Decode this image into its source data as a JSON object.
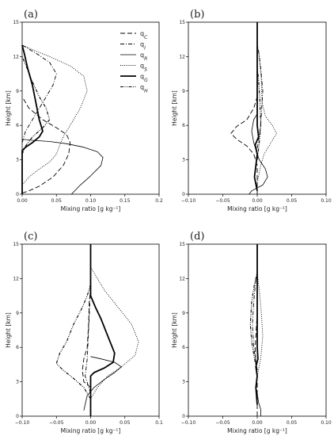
{
  "chart_data": [
    {
      "type": "line",
      "panel_label": "(a)",
      "xlabel": "Mixing ratio [g kg⁻¹]",
      "ylabel": "Height [km]",
      "xlim": [
        0,
        0.2
      ],
      "ylim": [
        0,
        15
      ],
      "xticks": [
        0,
        0.05,
        0.1,
        0.15,
        0.2
      ],
      "xtick_labels": [
        "0.00",
        "0.05",
        "0.10",
        "0.15",
        "0.2"
      ],
      "yticks": [
        0,
        3,
        6,
        9,
        12,
        15
      ],
      "legend": {
        "position": "top-right",
        "entries": [
          "q_C",
          "q_I",
          "q_R",
          "q_S",
          "q_G",
          "q_H"
        ]
      },
      "series": [
        {
          "name": "q_C",
          "points": [
            [
              0,
              0.1
            ],
            [
              0.01,
              0.3
            ],
            [
              0.025,
              0.7
            ],
            [
              0.045,
              1.5
            ],
            [
              0.06,
              2.5
            ],
            [
              0.068,
              3.5
            ],
            [
              0.07,
              4.5
            ],
            [
              0.065,
              5.2
            ],
            [
              0.05,
              5.8
            ],
            [
              0.03,
              6.5
            ],
            [
              0.01,
              7.5
            ],
            [
              0,
              8.5
            ]
          ]
        },
        {
          "name": "q_I",
          "points": [
            [
              0,
              4.5
            ],
            [
              0.005,
              5.5
            ],
            [
              0.015,
              6.5
            ],
            [
              0.03,
              8
            ],
            [
              0.045,
              9.5
            ],
            [
              0.05,
              10.5
            ],
            [
              0.04,
              11.5
            ],
            [
              0.02,
              12.3
            ],
            [
              0,
              13
            ]
          ]
        },
        {
          "name": "q_R",
          "points": [
            [
              0.072,
              0
            ],
            [
              0.085,
              0.8
            ],
            [
              0.1,
              1.6
            ],
            [
              0.115,
              2.5
            ],
            [
              0.118,
              3.2
            ],
            [
              0.11,
              3.7
            ],
            [
              0.09,
              4.1
            ],
            [
              0.065,
              4.4
            ],
            [
              0.04,
              4.6
            ],
            [
              0.015,
              4.7
            ],
            [
              0,
              4.8
            ]
          ]
        },
        {
          "name": "q_S",
          "points": [
            [
              0,
              0.8
            ],
            [
              0.01,
              1.5
            ],
            [
              0.025,
              2.2
            ],
            [
              0.04,
              2.8
            ],
            [
              0.05,
              3.5
            ],
            [
              0.055,
              4.3
            ],
            [
              0.06,
              5
            ],
            [
              0.07,
              6
            ],
            [
              0.085,
              7.5
            ],
            [
              0.095,
              9
            ],
            [
              0.09,
              10.3
            ],
            [
              0.07,
              11.2
            ],
            [
              0.04,
              12
            ],
            [
              0.015,
              12.6
            ],
            [
              0,
              13
            ]
          ]
        },
        {
          "name": "q_G",
          "points": [
            [
              0,
              0
            ],
            [
              0,
              3.8
            ],
            [
              0.005,
              4.1
            ],
            [
              0.015,
              4.5
            ],
            [
              0.025,
              5
            ],
            [
              0.03,
              5.5
            ],
            [
              0.025,
              6.5
            ],
            [
              0.02,
              8
            ],
            [
              0.015,
              9.5
            ],
            [
              0.008,
              11
            ],
            [
              0.003,
              12.3
            ],
            [
              0,
              13
            ]
          ]
        },
        {
          "name": "q_H",
          "points": [
            [
              0,
              3.5
            ],
            [
              0.005,
              4.2
            ],
            [
              0.015,
              5
            ],
            [
              0.03,
              5.8
            ],
            [
              0.04,
              6.5
            ],
            [
              0.035,
              7.5
            ],
            [
              0.025,
              8.5
            ],
            [
              0.015,
              9.8
            ],
            [
              0.007,
              11
            ],
            [
              0,
              12
            ]
          ]
        }
      ]
    },
    {
      "type": "line",
      "panel_label": "(b)",
      "xlabel": "Mixing ratio [g kg⁻¹]",
      "ylabel": "Height [km]",
      "xlim": [
        -0.1,
        0.1
      ],
      "ylim": [
        0,
        15
      ],
      "xticks": [
        -0.1,
        -0.05,
        0,
        0.05,
        0.1
      ],
      "xtick_labels": [
        "−0.10",
        "−0.05",
        "0.00",
        "0.05",
        "0.10"
      ],
      "yticks": [
        0,
        3,
        6,
        9,
        12,
        15
      ],
      "series": [
        {
          "name": "q_C",
          "points": [
            [
              0,
              0
            ],
            [
              0,
              2.5
            ],
            [
              -0.005,
              3.5
            ],
            [
              -0.015,
              4.2
            ],
            [
              -0.03,
              4.8
            ],
            [
              -0.038,
              5.3
            ],
            [
              -0.03,
              5.9
            ],
            [
              -0.015,
              6.5
            ],
            [
              -0.005,
              7.5
            ],
            [
              0,
              8.5
            ]
          ]
        },
        {
          "name": "q_I",
          "points": [
            [
              0,
              4
            ],
            [
              0.005,
              6
            ],
            [
              0.008,
              9
            ],
            [
              0.005,
              11
            ],
            [
              0.002,
              12.5
            ],
            [
              0,
              13
            ]
          ]
        },
        {
          "name": "q_R",
          "points": [
            [
              -0.012,
              0
            ],
            [
              -0.008,
              0.3
            ],
            [
              0.008,
              0.8
            ],
            [
              0.015,
              1.5
            ],
            [
              0.012,
              2.2
            ],
            [
              0.003,
              3
            ],
            [
              0,
              3.5
            ],
            [
              -0.005,
              4.5
            ],
            [
              -0.008,
              5.5
            ],
            [
              -0.005,
              6.5
            ],
            [
              0,
              7
            ]
          ]
        },
        {
          "name": "q_S",
          "points": [
            [
              0,
              1
            ],
            [
              0.005,
              2.5
            ],
            [
              0.01,
              3.5
            ],
            [
              0.02,
              4.5
            ],
            [
              0.028,
              5.3
            ],
            [
              0.022,
              6
            ],
            [
              0.012,
              6.8
            ],
            [
              0.007,
              8
            ],
            [
              0.006,
              10
            ],
            [
              0.003,
              12
            ],
            [
              0,
              13
            ]
          ]
        },
        {
          "name": "q_G",
          "points": [
            [
              0,
              15
            ],
            [
              0,
              6
            ],
            [
              0.002,
              5
            ],
            [
              -0.003,
              4.3
            ],
            [
              0,
              3.5
            ],
            [
              -0.002,
              2.5
            ],
            [
              -0.004,
              1.5
            ],
            [
              0,
              0.3
            ]
          ]
        },
        {
          "name": "q_H",
          "points": [
            [
              0,
              3
            ],
            [
              0.003,
              4.5
            ],
            [
              0.005,
              6
            ],
            [
              0.004,
              8
            ],
            [
              0.002,
              10
            ],
            [
              0,
              11
            ]
          ]
        }
      ]
    },
    {
      "type": "line",
      "panel_label": "(c)",
      "xlabel": "Mixing ratio [g kg⁻¹]",
      "ylabel": "Height [km]",
      "xlim": [
        -0.1,
        0.1
      ],
      "ylim": [
        0,
        15
      ],
      "xticks": [
        -0.1,
        -0.05,
        0,
        0.05,
        0.1
      ],
      "xtick_labels": [
        "−0.10",
        "−0.05",
        "0.00",
        "0.05",
        "0.1"
      ],
      "yticks": [
        0,
        3,
        6,
        9,
        12,
        15
      ],
      "series": [
        {
          "name": "q_C",
          "points": [
            [
              0,
              0
            ],
            [
              0,
              2.5
            ],
            [
              -0.01,
              3
            ],
            [
              -0.012,
              4
            ],
            [
              -0.01,
              5
            ],
            [
              -0.005,
              6
            ],
            [
              -0.003,
              8
            ],
            [
              -0.002,
              10
            ],
            [
              0,
              11
            ]
          ]
        },
        {
          "name": "q_I",
          "points": [
            [
              0,
              2
            ],
            [
              -0.008,
              3.5
            ],
            [
              -0.005,
              5
            ],
            [
              -0.003,
              7.5
            ],
            [
              -0.001,
              10
            ],
            [
              0,
              12.5
            ]
          ]
        },
        {
          "name": "q_R",
          "points": [
            [
              -0.01,
              0.5
            ],
            [
              -0.005,
              1.8
            ],
            [
              0.005,
              2.5
            ],
            [
              0.02,
              3.2
            ],
            [
              0.035,
              3.8
            ],
            [
              0.045,
              4.3
            ],
            [
              0.035,
              4.7
            ],
            [
              0.015,
              5
            ],
            [
              0,
              5.2
            ]
          ]
        },
        {
          "name": "q_S",
          "points": [
            [
              0,
              1.5
            ],
            [
              0.01,
              2.5
            ],
            [
              0.025,
              3.5
            ],
            [
              0.045,
              4.3
            ],
            [
              0.065,
              5.3
            ],
            [
              0.07,
              6.5
            ],
            [
              0.06,
              8
            ],
            [
              0.04,
              9.5
            ],
            [
              0.02,
              11
            ],
            [
              0.005,
              12.5
            ],
            [
              0,
              13
            ]
          ]
        },
        {
          "name": "q_G",
          "points": [
            [
              0,
              0
            ],
            [
              0,
              3.5
            ],
            [
              0.005,
              3.8
            ],
            [
              0.02,
              4.2
            ],
            [
              0.033,
              4.7
            ],
            [
              0.035,
              5.5
            ],
            [
              0.025,
              7
            ],
            [
              0.015,
              8.5
            ],
            [
              0.007,
              9.5
            ],
            [
              0,
              10.5
            ],
            [
              0,
              15
            ]
          ]
        },
        {
          "name": "q_H",
          "points": [
            [
              0,
              1.5
            ],
            [
              -0.01,
              2.5
            ],
            [
              -0.025,
              3.3
            ],
            [
              -0.04,
              4
            ],
            [
              -0.05,
              4.6
            ],
            [
              -0.045,
              5.5
            ],
            [
              -0.035,
              6.5
            ],
            [
              -0.025,
              8
            ],
            [
              -0.012,
              9.5
            ],
            [
              -0.005,
              10.5
            ],
            [
              0,
              11.5
            ]
          ]
        }
      ]
    },
    {
      "type": "line",
      "panel_label": "(d)",
      "xlabel": "Mixing ratio [g kg⁻¹]",
      "ylabel": "Height [km]",
      "xlim": [
        -0.1,
        0.1
      ],
      "ylim": [
        0,
        15
      ],
      "xticks": [
        -0.1,
        -0.05,
        0,
        0.05,
        0.1
      ],
      "xtick_labels": [
        "−0.10",
        "−0.05",
        "0.00",
        "0.05",
        "0.10"
      ],
      "yticks": [
        0,
        3,
        6,
        9,
        12,
        15
      ],
      "series": [
        {
          "name": "q_C",
          "points": [
            [
              0,
              0
            ],
            [
              0,
              3
            ],
            [
              -0.002,
              4.5
            ],
            [
              -0.003,
              6
            ],
            [
              -0.001,
              8
            ],
            [
              0,
              9
            ]
          ]
        },
        {
          "name": "q_I",
          "points": [
            [
              0,
              4
            ],
            [
              -0.005,
              6
            ],
            [
              -0.007,
              8
            ],
            [
              -0.005,
              10
            ],
            [
              -0.002,
              12
            ],
            [
              0,
              12.5
            ]
          ]
        },
        {
          "name": "q_R",
          "points": [
            [
              0.005,
              0
            ],
            [
              0.005,
              0.6
            ],
            [
              0.002,
              1.2
            ],
            [
              0,
              2
            ]
          ]
        },
        {
          "name": "q_S",
          "points": [
            [
              0,
              3.5
            ],
            [
              0.005,
              5
            ],
            [
              0.008,
              7
            ],
            [
              0.006,
              9
            ],
            [
              0.003,
              11
            ],
            [
              0,
              12.5
            ]
          ]
        },
        {
          "name": "q_G",
          "points": [
            [
              0,
              15
            ],
            [
              0,
              6
            ],
            [
              0.001,
              5
            ],
            [
              -0.002,
              4.3
            ],
            [
              0,
              3.5
            ],
            [
              -0.002,
              2.5
            ],
            [
              0,
              1
            ]
          ]
        },
        {
          "name": "q_H",
          "points": [
            [
              0,
              4
            ],
            [
              -0.004,
              5
            ],
            [
              -0.008,
              6.5
            ],
            [
              -0.01,
              8
            ],
            [
              -0.008,
              10
            ],
            [
              -0.004,
              11.5
            ],
            [
              0,
              12.5
            ]
          ]
        }
      ]
    }
  ]
}
